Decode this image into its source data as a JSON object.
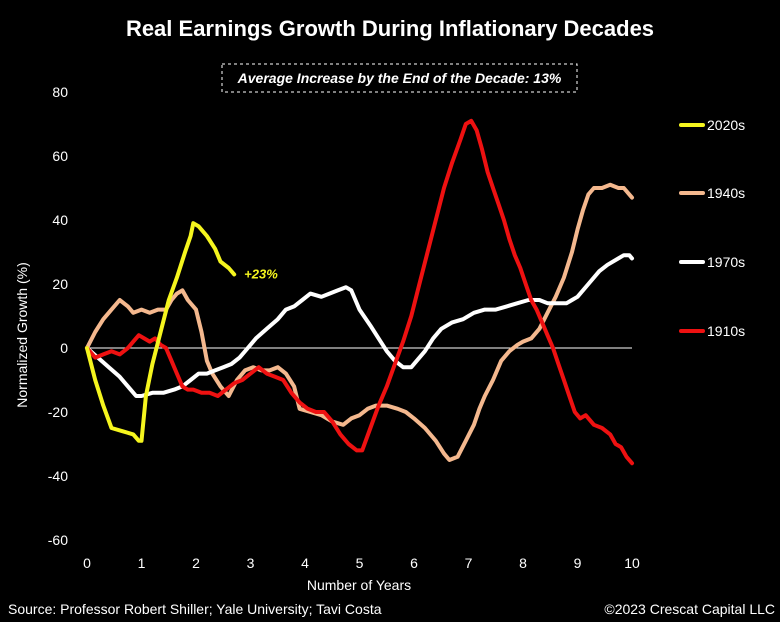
{
  "chart_data": {
    "type": "line",
    "title": "Real Earnings Growth During Inflationary Decades",
    "annotation": "Average Increase by the End of the Decade: 13%",
    "xlabel": "Number of Years",
    "ylabel": "Normalized Growth (%)",
    "xlim": [
      0,
      10
    ],
    "ylim": [
      -60,
      80
    ],
    "x_ticks": [
      "0",
      "1",
      "2",
      "3",
      "4",
      "5",
      "6",
      "7",
      "8",
      "9",
      "10"
    ],
    "y_ticks": [
      "80",
      "60",
      "40",
      "20",
      "0",
      "-20",
      "-40",
      "-60"
    ],
    "zero_line": true,
    "grid": false,
    "legend_position": "right",
    "series": [
      {
        "name": "2020s",
        "color": "#f5f51e",
        "end_label": "+23%",
        "points": [
          [
            0,
            0
          ],
          [
            0.15,
            -10
          ],
          [
            0.3,
            -18
          ],
          [
            0.45,
            -25
          ],
          [
            0.65,
            -26
          ],
          [
            0.85,
            -27
          ],
          [
            0.95,
            -29
          ],
          [
            1.0,
            -29
          ],
          [
            1.08,
            -15
          ],
          [
            1.2,
            -5
          ],
          [
            1.35,
            5
          ],
          [
            1.5,
            15
          ],
          [
            1.65,
            22
          ],
          [
            1.8,
            30
          ],
          [
            1.9,
            35
          ],
          [
            1.95,
            39
          ],
          [
            2.05,
            38
          ],
          [
            2.2,
            35
          ],
          [
            2.35,
            31
          ],
          [
            2.45,
            27
          ],
          [
            2.6,
            25
          ],
          [
            2.7,
            23
          ]
        ]
      },
      {
        "name": "1940s",
        "color": "#f4b88e",
        "points": [
          [
            0,
            0
          ],
          [
            0.15,
            5
          ],
          [
            0.3,
            9
          ],
          [
            0.45,
            12
          ],
          [
            0.6,
            15
          ],
          [
            0.75,
            13
          ],
          [
            0.85,
            11
          ],
          [
            1.0,
            12
          ],
          [
            1.15,
            11
          ],
          [
            1.3,
            12
          ],
          [
            1.45,
            12
          ],
          [
            1.55,
            15
          ],
          [
            1.65,
            17
          ],
          [
            1.75,
            18
          ],
          [
            1.85,
            15
          ],
          [
            2.0,
            12
          ],
          [
            2.1,
            5
          ],
          [
            2.2,
            -4
          ],
          [
            2.3,
            -8
          ],
          [
            2.45,
            -12
          ],
          [
            2.6,
            -15
          ],
          [
            2.75,
            -10
          ],
          [
            2.9,
            -7
          ],
          [
            3.05,
            -6
          ],
          [
            3.2,
            -7
          ],
          [
            3.35,
            -7
          ],
          [
            3.5,
            -6
          ],
          [
            3.65,
            -8
          ],
          [
            3.8,
            -12
          ],
          [
            3.9,
            -19
          ],
          [
            4.1,
            -20
          ],
          [
            4.3,
            -21
          ],
          [
            4.5,
            -23
          ],
          [
            4.7,
            -24
          ],
          [
            4.85,
            -22
          ],
          [
            5.0,
            -21
          ],
          [
            5.15,
            -19
          ],
          [
            5.3,
            -18
          ],
          [
            5.5,
            -18
          ],
          [
            5.7,
            -19
          ],
          [
            5.85,
            -20
          ],
          [
            6.0,
            -22
          ],
          [
            6.2,
            -25
          ],
          [
            6.4,
            -29
          ],
          [
            6.55,
            -33
          ],
          [
            6.65,
            -35
          ],
          [
            6.8,
            -34
          ],
          [
            6.95,
            -29
          ],
          [
            7.1,
            -24
          ],
          [
            7.2,
            -19
          ],
          [
            7.3,
            -15
          ],
          [
            7.45,
            -10
          ],
          [
            7.6,
            -4
          ],
          [
            7.75,
            -1
          ],
          [
            7.9,
            1
          ],
          [
            8.0,
            2
          ],
          [
            8.15,
            3
          ],
          [
            8.3,
            6
          ],
          [
            8.45,
            11
          ],
          [
            8.6,
            16
          ],
          [
            8.75,
            22
          ],
          [
            8.9,
            30
          ],
          [
            9.0,
            37
          ],
          [
            9.1,
            43
          ],
          [
            9.2,
            48
          ],
          [
            9.3,
            50
          ],
          [
            9.45,
            50
          ],
          [
            9.6,
            51
          ],
          [
            9.75,
            50
          ],
          [
            9.85,
            50
          ],
          [
            9.95,
            48
          ],
          [
            10.0,
            47
          ]
        ]
      },
      {
        "name": "1970s",
        "color": "#ffffff",
        "points": [
          [
            0,
            0
          ],
          [
            0.2,
            -3
          ],
          [
            0.4,
            -6
          ],
          [
            0.6,
            -9
          ],
          [
            0.8,
            -13
          ],
          [
            0.9,
            -15
          ],
          [
            1.0,
            -15
          ],
          [
            1.2,
            -14
          ],
          [
            1.4,
            -14
          ],
          [
            1.6,
            -13
          ],
          [
            1.75,
            -12
          ],
          [
            1.9,
            -10
          ],
          [
            2.05,
            -8
          ],
          [
            2.2,
            -8
          ],
          [
            2.35,
            -7
          ],
          [
            2.5,
            -6
          ],
          [
            2.65,
            -5
          ],
          [
            2.8,
            -3
          ],
          [
            2.95,
            0
          ],
          [
            3.1,
            3
          ],
          [
            3.3,
            6
          ],
          [
            3.5,
            9
          ],
          [
            3.65,
            12
          ],
          [
            3.8,
            13
          ],
          [
            3.95,
            15
          ],
          [
            4.1,
            17
          ],
          [
            4.3,
            16
          ],
          [
            4.45,
            17
          ],
          [
            4.6,
            18
          ],
          [
            4.75,
            19
          ],
          [
            4.85,
            18
          ],
          [
            5.0,
            12
          ],
          [
            5.2,
            7
          ],
          [
            5.35,
            3
          ],
          [
            5.5,
            -1
          ],
          [
            5.65,
            -4
          ],
          [
            5.8,
            -6
          ],
          [
            5.95,
            -6
          ],
          [
            6.05,
            -4
          ],
          [
            6.2,
            -1
          ],
          [
            6.35,
            3
          ],
          [
            6.5,
            6
          ],
          [
            6.7,
            8
          ],
          [
            6.9,
            9
          ],
          [
            7.1,
            11
          ],
          [
            7.3,
            12
          ],
          [
            7.5,
            12
          ],
          [
            7.7,
            13
          ],
          [
            7.9,
            14
          ],
          [
            8.1,
            15
          ],
          [
            8.3,
            15
          ],
          [
            8.45,
            14
          ],
          [
            8.6,
            14
          ],
          [
            8.8,
            14
          ],
          [
            8.9,
            15
          ],
          [
            9.0,
            16
          ],
          [
            9.2,
            20
          ],
          [
            9.4,
            24
          ],
          [
            9.55,
            26
          ],
          [
            9.75,
            28
          ],
          [
            9.85,
            29
          ],
          [
            9.95,
            29
          ],
          [
            10.0,
            28
          ]
        ]
      },
      {
        "name": "1910s",
        "color": "#ee1111",
        "points": [
          [
            0,
            0
          ],
          [
            0.15,
            -3
          ],
          [
            0.3,
            -2
          ],
          [
            0.45,
            -1
          ],
          [
            0.6,
            -2
          ],
          [
            0.75,
            0
          ],
          [
            0.85,
            2
          ],
          [
            0.95,
            4
          ],
          [
            1.05,
            3
          ],
          [
            1.15,
            2
          ],
          [
            1.25,
            3
          ],
          [
            1.35,
            1
          ],
          [
            1.45,
            0
          ],
          [
            1.55,
            -4
          ],
          [
            1.65,
            -8
          ],
          [
            1.75,
            -12
          ],
          [
            1.85,
            -13
          ],
          [
            1.95,
            -13
          ],
          [
            2.1,
            -14
          ],
          [
            2.25,
            -14
          ],
          [
            2.4,
            -15
          ],
          [
            2.55,
            -13
          ],
          [
            2.7,
            -11
          ],
          [
            2.85,
            -10
          ],
          [
            3.0,
            -8
          ],
          [
            3.15,
            -6
          ],
          [
            3.3,
            -8
          ],
          [
            3.45,
            -9
          ],
          [
            3.6,
            -10
          ],
          [
            3.75,
            -14
          ],
          [
            3.9,
            -17
          ],
          [
            4.05,
            -19
          ],
          [
            4.2,
            -20
          ],
          [
            4.35,
            -20
          ],
          [
            4.5,
            -23
          ],
          [
            4.65,
            -27
          ],
          [
            4.8,
            -30
          ],
          [
            4.95,
            -32
          ],
          [
            5.05,
            -32
          ],
          [
            5.2,
            -25
          ],
          [
            5.35,
            -18
          ],
          [
            5.5,
            -12
          ],
          [
            5.65,
            -5
          ],
          [
            5.8,
            2
          ],
          [
            5.95,
            10
          ],
          [
            6.1,
            20
          ],
          [
            6.25,
            30
          ],
          [
            6.4,
            40
          ],
          [
            6.55,
            50
          ],
          [
            6.7,
            58
          ],
          [
            6.85,
            65
          ],
          [
            6.95,
            70
          ],
          [
            7.05,
            71
          ],
          [
            7.15,
            68
          ],
          [
            7.25,
            62
          ],
          [
            7.35,
            55
          ],
          [
            7.45,
            50
          ],
          [
            7.55,
            45
          ],
          [
            7.65,
            40
          ],
          [
            7.75,
            34
          ],
          [
            7.85,
            29
          ],
          [
            7.95,
            25
          ],
          [
            8.05,
            20
          ],
          [
            8.15,
            15
          ],
          [
            8.25,
            12
          ],
          [
            8.35,
            8
          ],
          [
            8.45,
            4
          ],
          [
            8.55,
            0
          ],
          [
            8.65,
            -5
          ],
          [
            8.75,
            -10
          ],
          [
            8.85,
            -15
          ],
          [
            8.95,
            -20
          ],
          [
            9.05,
            -22
          ],
          [
            9.15,
            -21
          ],
          [
            9.3,
            -24
          ],
          [
            9.45,
            -25
          ],
          [
            9.6,
            -27
          ],
          [
            9.7,
            -30
          ],
          [
            9.8,
            -31
          ],
          [
            9.9,
            -34
          ],
          [
            10.0,
            -36
          ]
        ]
      }
    ]
  },
  "footer": {
    "source": "Source: Professor Robert Shiller; Yale University; Tavi Costa",
    "copyright": "©2023 Crescat Capital LLC"
  }
}
